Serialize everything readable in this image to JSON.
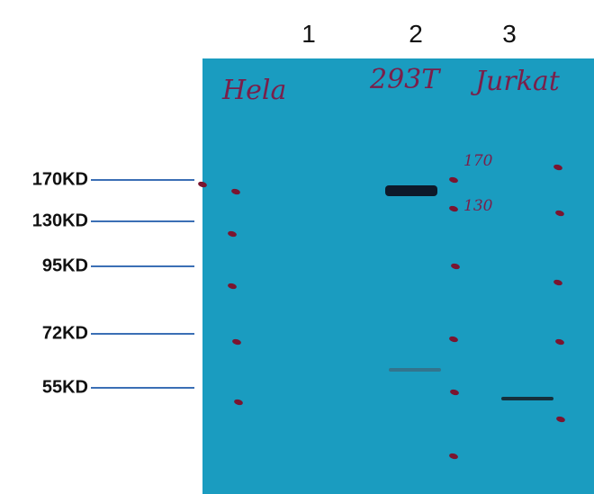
{
  "lanes": [
    "1",
    "2",
    "3"
  ],
  "markers": [
    "170KD",
    "130KD",
    "95KD",
    "72KD",
    "55KD"
  ],
  "membrane_labels": {
    "lane1": "Hela",
    "lane2": "293T",
    "lane3": "Jurkat",
    "ladder_170": "170",
    "ladder_130": "130"
  },
  "colors": {
    "membrane": "#1a9cc0",
    "ladder": "#7a1530",
    "band": "#0d1a2a",
    "marker_line": "#3b6fb5"
  }
}
